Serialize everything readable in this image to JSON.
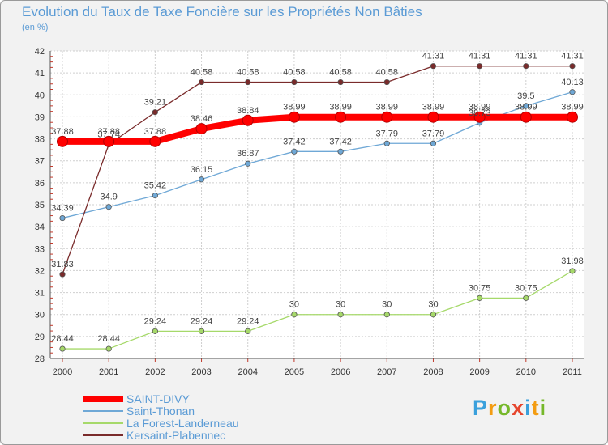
{
  "title": "Evolution du Taux de Taxe Foncière sur les Propriétés Non Bâties",
  "subtitle": "(en %)",
  "logo": {
    "letters": [
      "P",
      "r",
      "o",
      "x",
      "i",
      "t",
      "i"
    ],
    "colors": [
      "#3aa0dc",
      "#f39c12",
      "#76b82a",
      "#e6462e",
      "#3aa0dc",
      "#f39c12",
      "#76b82a"
    ]
  },
  "chart_data": {
    "type": "line",
    "title": "Evolution du Taux de Taxe Foncière sur les Propriétés Non Bâties",
    "ylabel": "(en %)",
    "xlabel": "",
    "x": [
      "2000",
      "2001",
      "2002",
      "2003",
      "2004",
      "2005",
      "2006",
      "2007",
      "2008",
      "2009",
      "2010",
      "2011"
    ],
    "ylim": [
      28,
      42
    ],
    "yticks": [
      28,
      29,
      30,
      31,
      32,
      33,
      34,
      35,
      36,
      37,
      38,
      39,
      40,
      41,
      42
    ],
    "grid": true,
    "legend_position": "bottom-left",
    "series": [
      {
        "name": "SAINT-DIVY",
        "color": "#ff0000",
        "weight": "bold",
        "values": [
          37.88,
          37.88,
          37.88,
          38.46,
          38.84,
          38.99,
          38.99,
          38.99,
          38.99,
          38.99,
          38.99,
          38.99
        ],
        "labels": [
          "37.88",
          "37.88",
          "37.88",
          "38.46",
          "38.84",
          "38.99",
          "38.99",
          "38.99",
          "38.99",
          "38.99",
          "38.99",
          "38.99"
        ]
      },
      {
        "name": "Saint-Thonan",
        "color": "#6fa8d6",
        "weight": "normal",
        "values": [
          34.39,
          34.9,
          35.42,
          36.15,
          36.87,
          37.42,
          37.42,
          37.79,
          37.79,
          38.73,
          39.5,
          40.13
        ],
        "labels": [
          "34.39",
          "34.9",
          "35.42",
          "36.15",
          "36.87",
          "37.42",
          "37.42",
          "37.79",
          "37.79",
          "38.73",
          "39.5",
          "40.13"
        ]
      },
      {
        "name": "La Forest-Landerneau",
        "color": "#a6d96a",
        "weight": "normal",
        "values": [
          28.44,
          28.44,
          29.24,
          29.24,
          29.24,
          30,
          30,
          30,
          30,
          30.75,
          30.75,
          31.98
        ],
        "labels": [
          "28.44",
          "28.44",
          "29.24",
          "29.24",
          "29.24",
          "30",
          "30",
          "30",
          "30",
          "30.75",
          "30.75",
          "31.98"
        ]
      },
      {
        "name": "Kersaint-Plabennec",
        "color": "#7a2b2b",
        "weight": "normal",
        "values": [
          31.83,
          37.74,
          39.21,
          40.58,
          40.58,
          40.58,
          40.58,
          40.58,
          41.31,
          41.31,
          41.31,
          41.31
        ],
        "labels": [
          "31.83",
          "37.74",
          "39.21",
          "40.58",
          "40.58",
          "40.58",
          "40.58",
          "40.58",
          "41.31",
          "41.31",
          "41.31",
          "41.31"
        ]
      }
    ]
  }
}
